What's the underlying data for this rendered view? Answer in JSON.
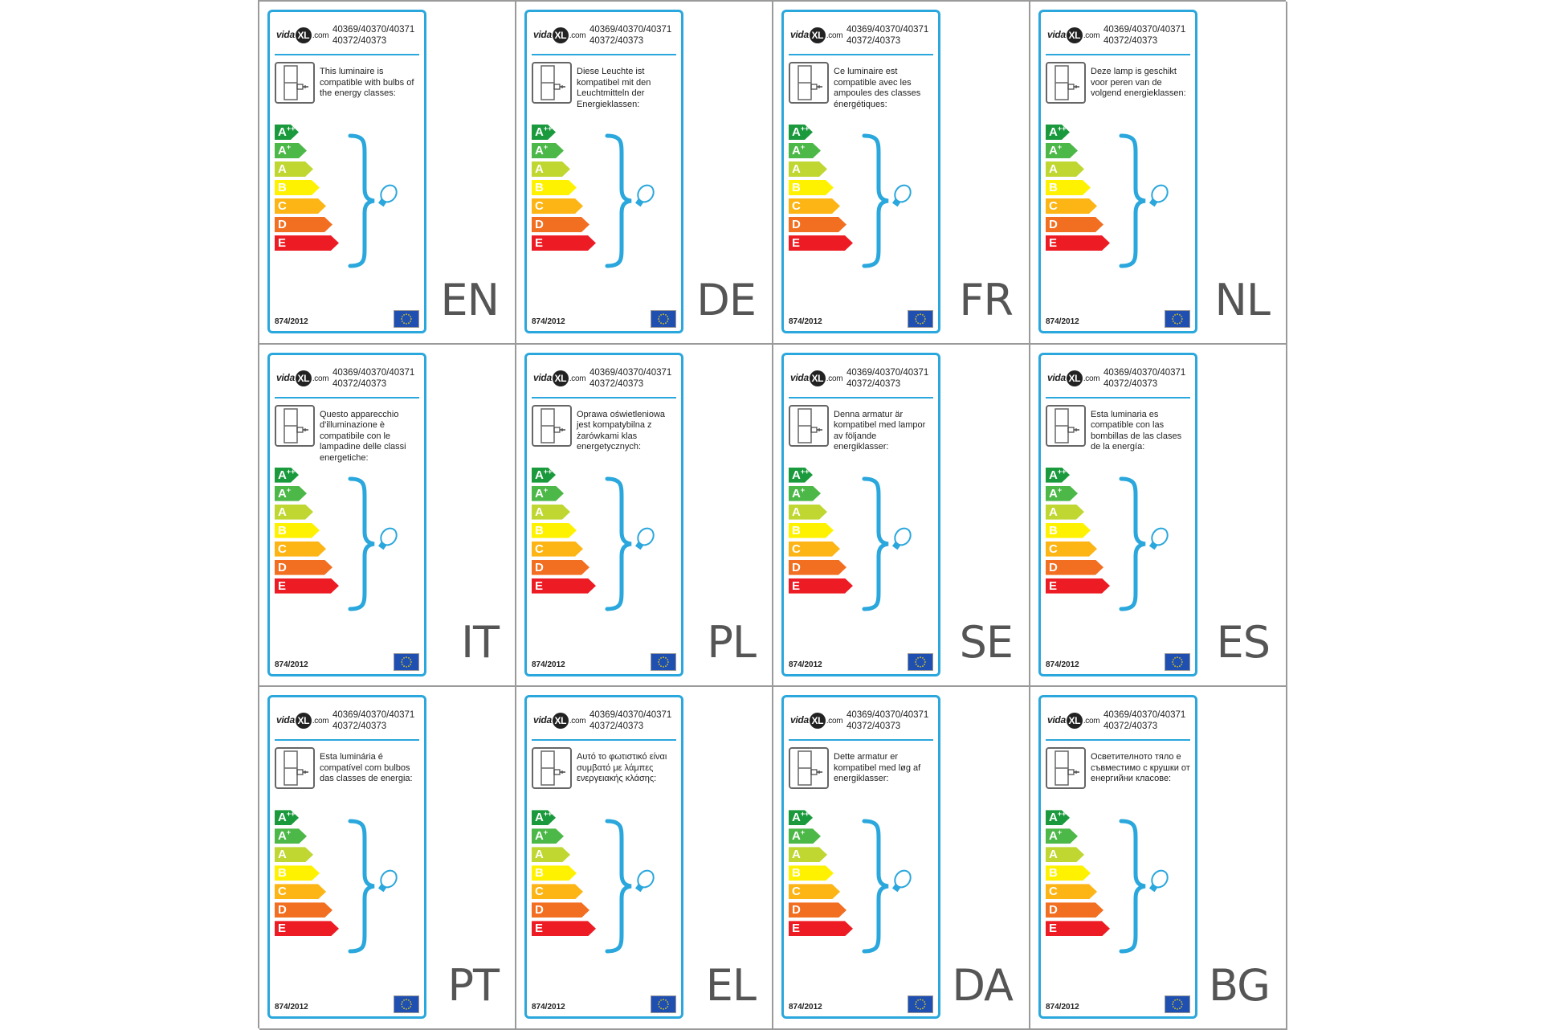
{
  "model_numbers": "40369/40370/40371\n40372/40373",
  "logo": {
    "pre": "vida",
    "mark": "XL",
    "post": ".com"
  },
  "regulation": "874/2012",
  "energy_classes": [
    {
      "main": "A",
      "sup": "++",
      "color": "#1a9a3c"
    },
    {
      "main": "A",
      "sup": "+",
      "color": "#4cb848"
    },
    {
      "main": "A",
      "sup": "",
      "color": "#bfd730"
    },
    {
      "main": "B",
      "sup": "",
      "color": "#fff200"
    },
    {
      "main": "C",
      "sup": "",
      "color": "#fcb514"
    },
    {
      "main": "D",
      "sup": "",
      "color": "#f26f21"
    },
    {
      "main": "E",
      "sup": "",
      "color": "#ed1c24"
    }
  ],
  "cards": [
    {
      "lang": "EN",
      "text": "This luminaire is compatible with bulbs of the energy classes:"
    },
    {
      "lang": "DE",
      "text": "Diese Leuchte ist kompatibel mit den Leuchtmitteln der Energieklassen:"
    },
    {
      "lang": "FR",
      "text": "Ce luminaire est compatible avec les ampoules des classes énergétiques:"
    },
    {
      "lang": "NL",
      "text": "Deze lamp is geschikt voor peren van de volgend energieklassen:"
    },
    {
      "lang": "IT",
      "text": "Questo apparecchio d'illuminazione è compatibile con le lampadine delle classi energetiche:"
    },
    {
      "lang": "PL",
      "text": "Oprawa oświetleniowa jest kompatybilna z żarówkami klas energetycznych:"
    },
    {
      "lang": "SE",
      "text": "Denna armatur är kompatibel med lampor av följande energiklasser:"
    },
    {
      "lang": "ES",
      "text": "Esta luminaria es compatible con las bombillas de las clases de la energía:"
    },
    {
      "lang": "PT",
      "text": "Esta luminária é compatível com bulbos das classes de energia:"
    },
    {
      "lang": "EL",
      "text": "Αυτό το φωτιστικό είναι συμβατό με λάμπες ενεργειακής κλάσης:"
    },
    {
      "lang": "DA",
      "text": "Dette armatur er kompatibel med løg af energiklasser:"
    },
    {
      "lang": "BG",
      "text": "Осветителното тяло е съвместимо с крушки от енергийни класове:"
    }
  ],
  "colors": {
    "card_border": "#2aa7dc",
    "eu_flag": "#1f4fb0",
    "eu_stars": "#ffdd00"
  }
}
